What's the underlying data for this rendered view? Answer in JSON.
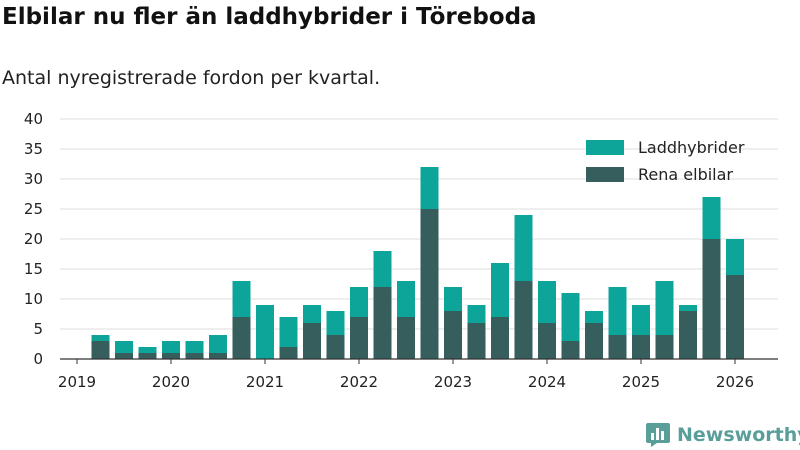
{
  "title": "Elbilar nu fler än laddhybrider i Töreboda",
  "subtitle": "Antal nyregistrerade fordon per kvartal.",
  "brand": {
    "name": "Newsworthy",
    "icon": "newsworthy-logo-icon"
  },
  "chart_data": {
    "type": "bar",
    "stacked": true,
    "title": "Elbilar nu fler än laddhybrider i Töreboda",
    "subtitle": "Antal nyregistrerade fordon per kvartal.",
    "xlabel": "",
    "ylabel": "",
    "ylim": [
      0,
      40
    ],
    "yticks": [
      0,
      5,
      10,
      15,
      20,
      25,
      30,
      35,
      40
    ],
    "grid": true,
    "legend_position": "top-right",
    "x_tick_labels": [
      "2019",
      "2020",
      "2021",
      "2022",
      "2023",
      "2024",
      "2025",
      "2026"
    ],
    "categories": [
      "2019 Q2",
      "2019 Q3",
      "2019 Q4",
      "2020 Q1",
      "2020 Q2",
      "2020 Q3",
      "2020 Q4",
      "2021 Q1",
      "2021 Q2",
      "2021 Q3",
      "2021 Q4",
      "2022 Q1",
      "2022 Q2",
      "2022 Q3",
      "2022 Q4",
      "2023 Q1",
      "2023 Q2",
      "2023 Q3",
      "2023 Q4",
      "2024 Q1",
      "2024 Q2",
      "2024 Q3",
      "2024 Q4",
      "2025 Q1",
      "2025 Q2",
      "2025 Q3",
      "2025 Q4",
      "2026 Q1"
    ],
    "series": [
      {
        "name": "Rena elbilar",
        "color": "#365e5c",
        "values": [
          3,
          1,
          1,
          1,
          1,
          1,
          7,
          0,
          2,
          6,
          4,
          7,
          12,
          7,
          25,
          8,
          6,
          7,
          13,
          6,
          3,
          6,
          4,
          4,
          4,
          8,
          20,
          14
        ]
      },
      {
        "name": "Laddhybrider",
        "color": "#0da49a",
        "values": [
          1,
          2,
          1,
          2,
          2,
          3,
          6,
          9,
          5,
          3,
          4,
          5,
          6,
          6,
          7,
          4,
          3,
          9,
          11,
          7,
          8,
          2,
          8,
          5,
          9,
          1,
          7,
          6
        ]
      }
    ],
    "legend": [
      "Laddhybrider",
      "Rena elbilar"
    ],
    "colors": {
      "gridline": "#dddddd",
      "axis": "#333333"
    }
  }
}
